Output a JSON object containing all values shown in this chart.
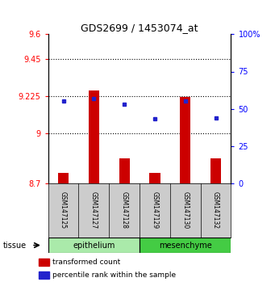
{
  "title": "GDS2699 / 1453074_at",
  "samples": [
    "GSM147125",
    "GSM147127",
    "GSM147128",
    "GSM147129",
    "GSM147130",
    "GSM147132"
  ],
  "red_values": [
    8.76,
    9.26,
    8.85,
    8.76,
    9.22,
    8.85
  ],
  "blue_values": [
    55,
    57,
    53,
    43,
    55,
    44
  ],
  "ylim_left": [
    8.7,
    9.6
  ],
  "ylim_right": [
    0,
    100
  ],
  "yticks_left": [
    8.7,
    9.0,
    9.225,
    9.45,
    9.6
  ],
  "ytick_labels_left": [
    "8.7",
    "9",
    "9.225",
    "9.45",
    "9.6"
  ],
  "yticks_right": [
    0,
    25,
    50,
    75,
    100
  ],
  "ytick_labels_right": [
    "0",
    "25",
    "50",
    "75",
    "100%"
  ],
  "hlines": [
    9.0,
    9.225,
    9.45
  ],
  "bar_baseline": 8.7,
  "red_color": "#cc0000",
  "blue_color": "#2222cc",
  "bar_width": 0.35,
  "legend_red": "transformed count",
  "legend_blue": "percentile rank within the sample",
  "tissue_label": "tissue",
  "epi_color": "#aaeaaa",
  "mes_color": "#44cc44",
  "label_bg": "#cccccc"
}
